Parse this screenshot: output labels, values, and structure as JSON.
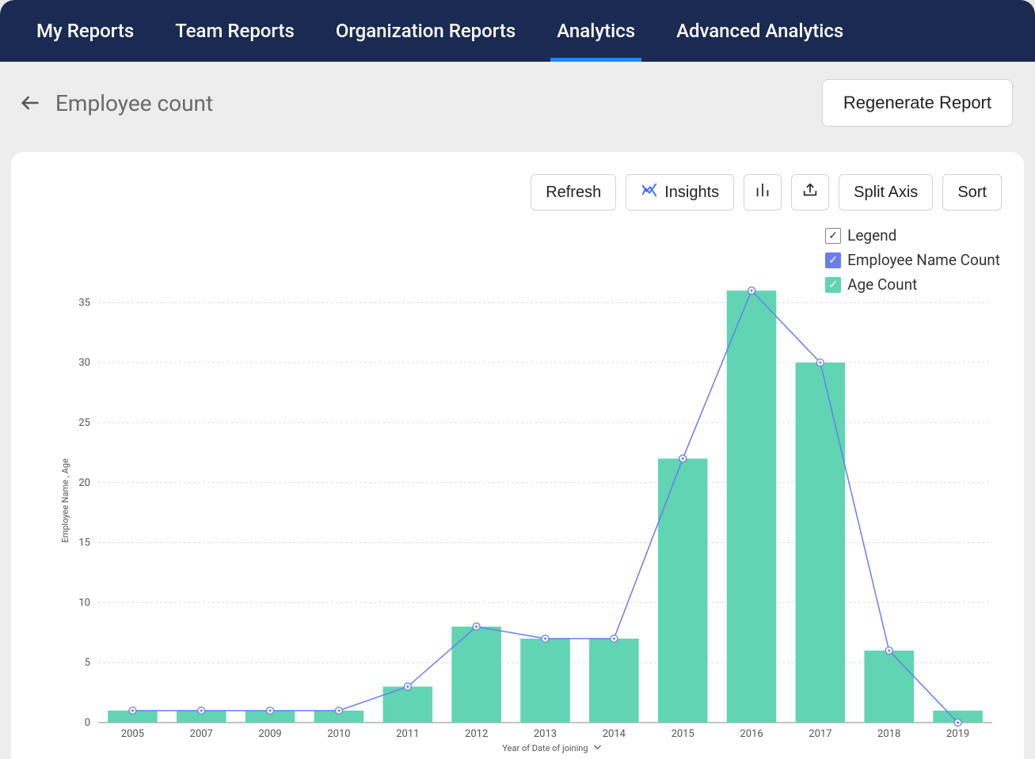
{
  "nav": {
    "items": [
      {
        "label": "My Reports"
      },
      {
        "label": "Team Reports"
      },
      {
        "label": "Organization Reports"
      },
      {
        "label": "Analytics",
        "active": true
      },
      {
        "label": "Advanced Analytics"
      }
    ]
  },
  "header": {
    "title": "Employee count",
    "regenerate_label": "Regenerate Report"
  },
  "toolbar": {
    "refresh_label": "Refresh",
    "insights_label": "Insights",
    "split_axis_label": "Split Axis",
    "sort_label": "Sort"
  },
  "legend": {
    "title": "Legend",
    "series1": {
      "label": "Employee Name Count",
      "color": "#6a7ef0"
    },
    "series2": {
      "label": "Age Count",
      "color": "#60d4b3"
    }
  },
  "chart": {
    "type": "bar+line",
    "categories": [
      "2005",
      "2007",
      "2009",
      "2010",
      "2011",
      "2012",
      "2013",
      "2014",
      "2015",
      "2016",
      "2017",
      "2018",
      "2019"
    ],
    "bar_values": [
      1,
      1,
      1,
      1,
      3,
      8,
      7,
      7,
      22,
      36,
      30,
      6,
      1
    ],
    "line_values": [
      1,
      1,
      1,
      1,
      3,
      8,
      7,
      7,
      22,
      36,
      30,
      6,
      0
    ],
    "bar_color": "#60d4b3",
    "line_color": "#6a7ef0",
    "marker_fill": "#ffffff",
    "marker_stroke": "#6a7ef0",
    "marker_inner": "#6a7ef0",
    "ylabel": "Employee Name , Age",
    "xlabel": "Year of Date of joining",
    "ylim": [
      0,
      37
    ],
    "yticks": [
      0,
      5,
      10,
      15,
      20,
      25,
      30,
      35
    ],
    "grid_color": "#dcdcdc",
    "axis_color": "#888888",
    "tick_font_size": 13,
    "axis_label_font_size": 11,
    "bar_width_ratio": 0.72,
    "line_width": 1.5,
    "marker_radius": 4.5,
    "background_color": "#ffffff"
  }
}
